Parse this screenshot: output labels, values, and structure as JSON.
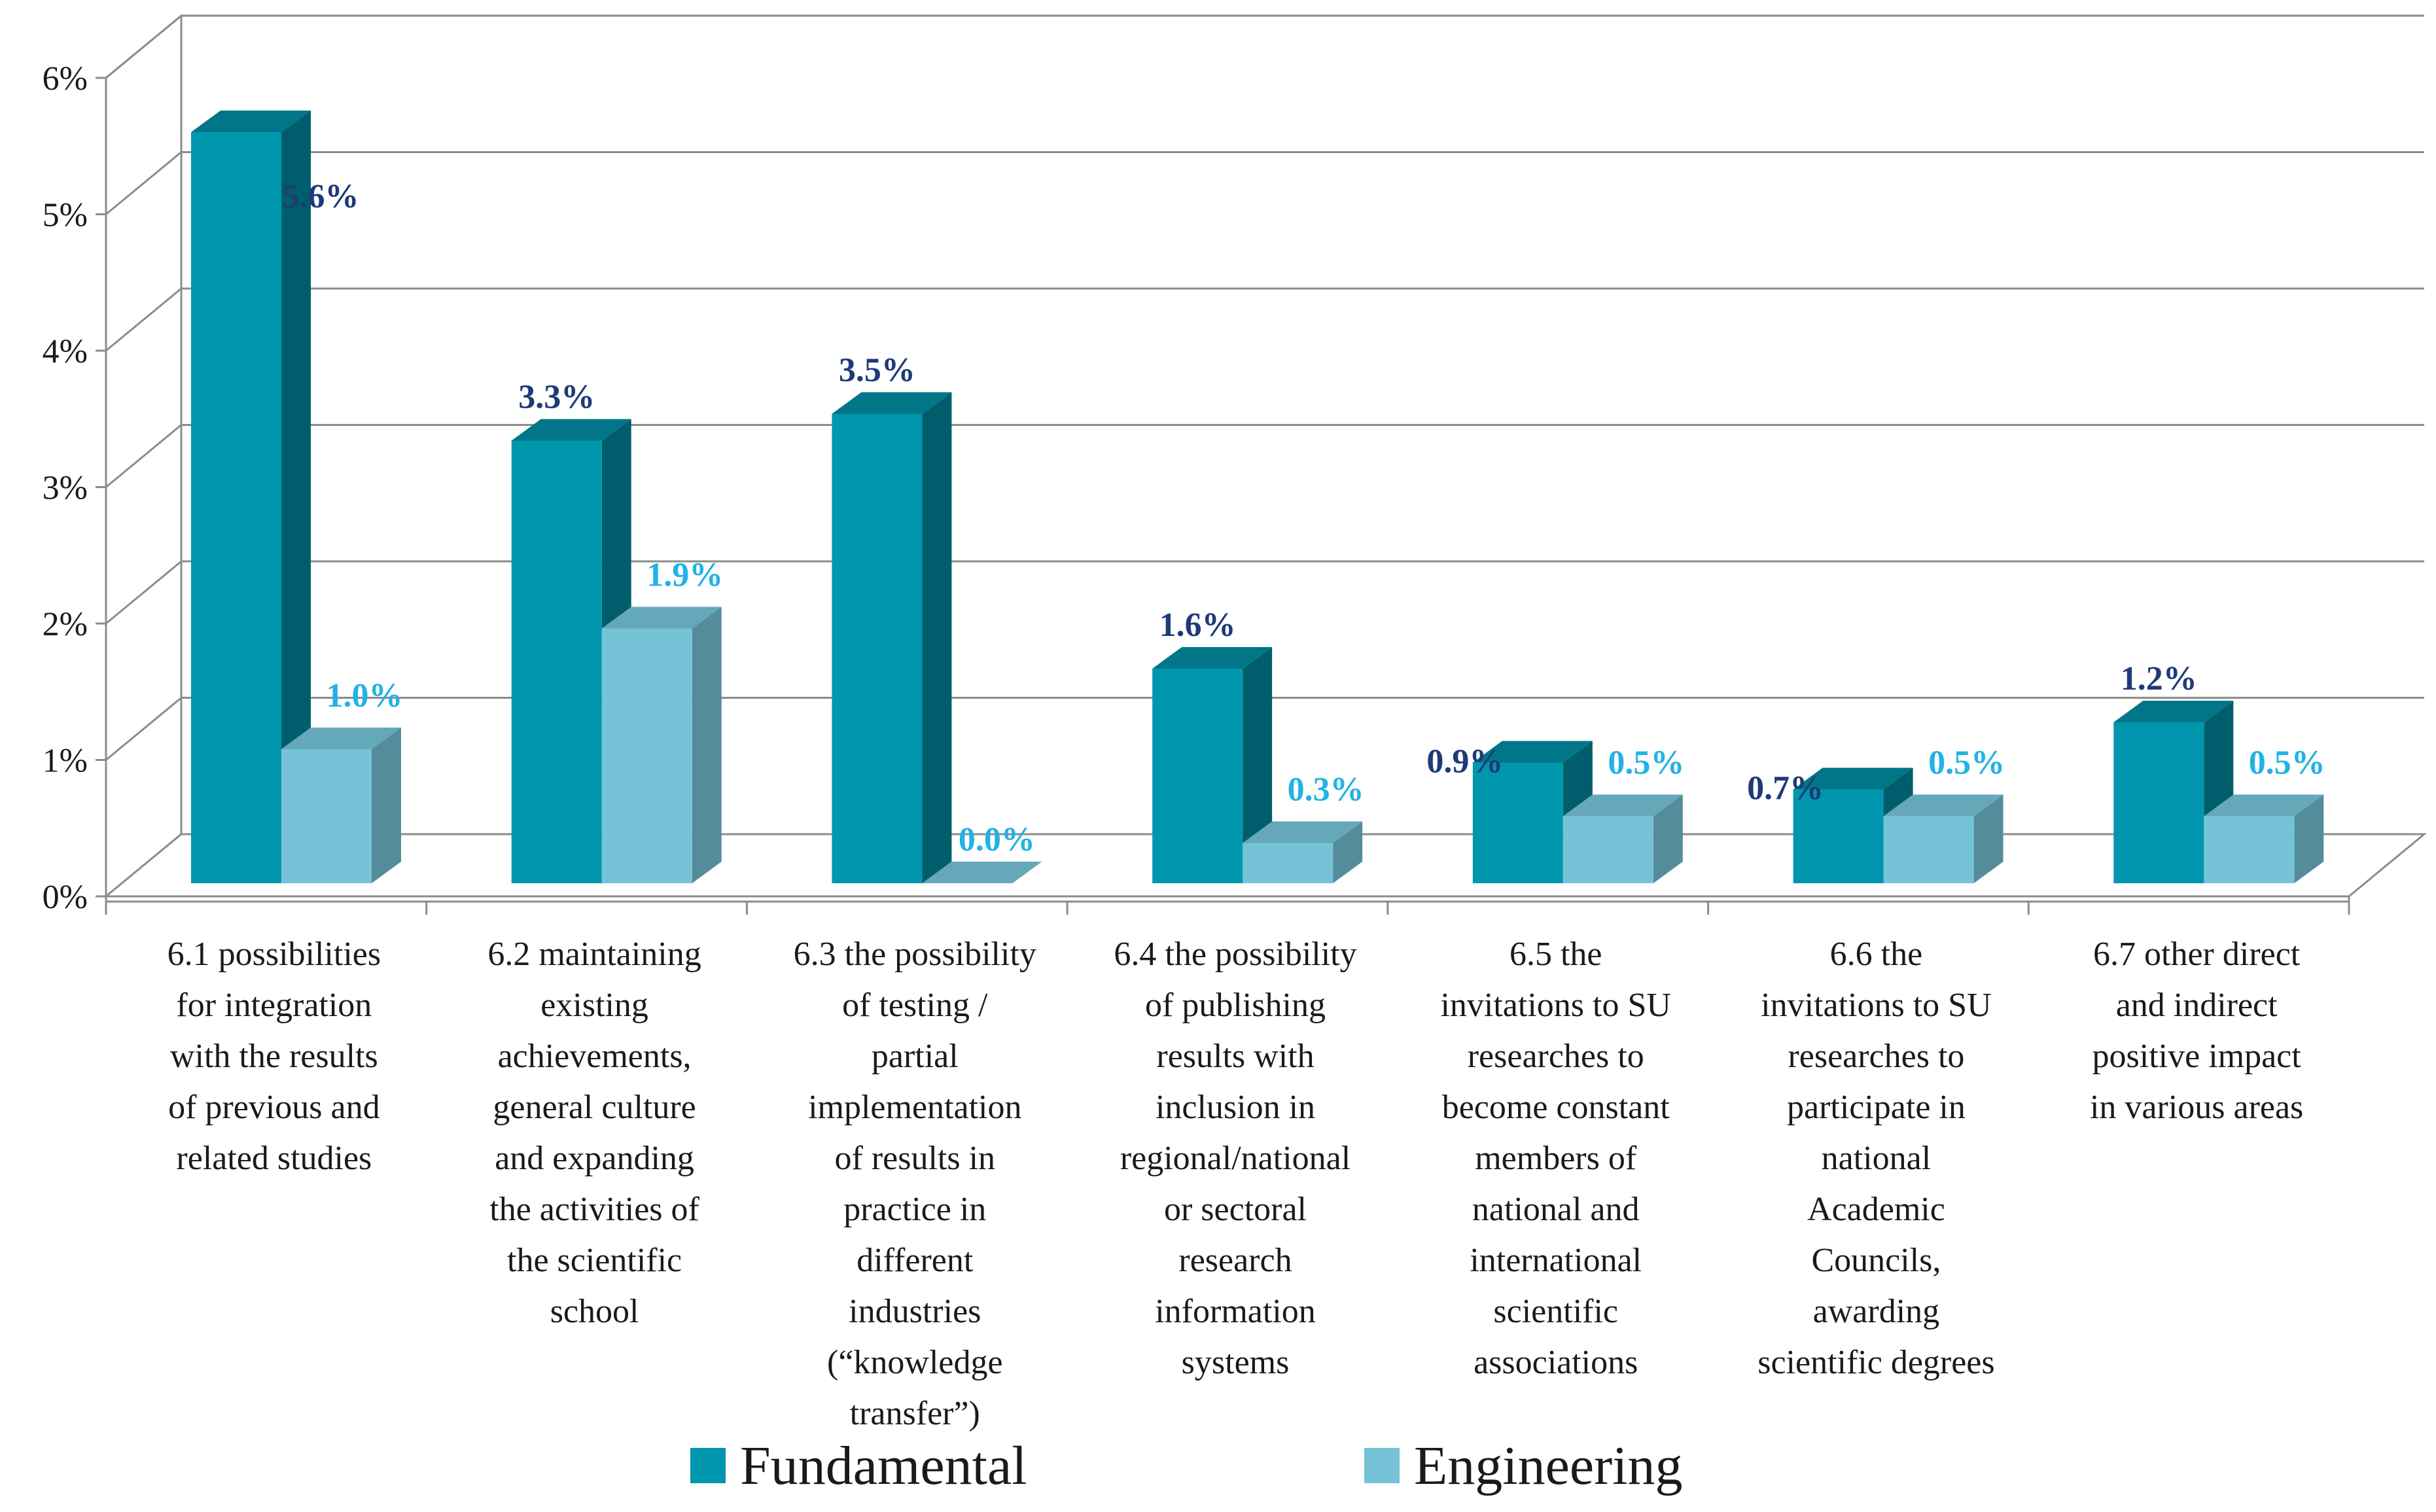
{
  "chart_data": {
    "type": "bar",
    "style": "3d-clustered-column",
    "title": "",
    "xlabel": "",
    "ylabel": "",
    "ylim": [
      0,
      6
    ],
    "y_ticks": [
      "0%",
      "1%",
      "2%",
      "3%",
      "4%",
      "5%",
      "6%"
    ],
    "grid": true,
    "legend_position": "bottom",
    "categories": [
      [
        "6.1 possibilities",
        "for integration",
        "with the results",
        "of previous and",
        "related studies"
      ],
      [
        "6.2 maintaining",
        "existing",
        "achievements,",
        "general culture",
        "and expanding",
        "the activities of",
        "the scientific",
        "school"
      ],
      [
        "6.3 the possibility",
        "of testing /",
        "partial",
        "implementation",
        "of results in",
        "practice in",
        "different",
        "industries",
        "(“knowledge",
        "transfer”)"
      ],
      [
        "6.4 the possibility",
        "of publishing",
        "results with",
        "inclusion in",
        "regional/national",
        "or sectoral",
        "research",
        "information",
        "systems"
      ],
      [
        "6.5 the",
        "invitations to SU",
        "researches to",
        "become constant",
        "members of",
        "national and",
        "international",
        "scientific",
        "associations"
      ],
      [
        "6.6 the",
        "invitations to SU",
        "researches to",
        "participate in",
        "national",
        "Academic",
        "Councils,",
        "awarding",
        "scientific degrees"
      ],
      [
        "6.7 other direct",
        "and indirect",
        "positive impact",
        "in various areas"
      ]
    ],
    "series": [
      {
        "name": "Fundamental",
        "color": "#0097AE",
        "label_color": "#1F3A78",
        "values": [
          5.6,
          3.3,
          3.5,
          1.6,
          0.9,
          0.7,
          1.2
        ],
        "labels": [
          "5.6%",
          "3.3%",
          "3.5%",
          "1.6%",
          "0.9%",
          "0.7%",
          "1.2%"
        ]
      },
      {
        "name": "Engineering",
        "color": "#76C3D7",
        "label_color": "#22B2E6",
        "values": [
          1.0,
          1.9,
          0.0,
          0.3,
          0.5,
          0.5,
          0.5
        ],
        "labels": [
          "1.0%",
          "1.9%",
          "0.0%",
          "0.3%",
          "0.5%",
          "0.5%",
          "0.5%"
        ]
      }
    ]
  }
}
